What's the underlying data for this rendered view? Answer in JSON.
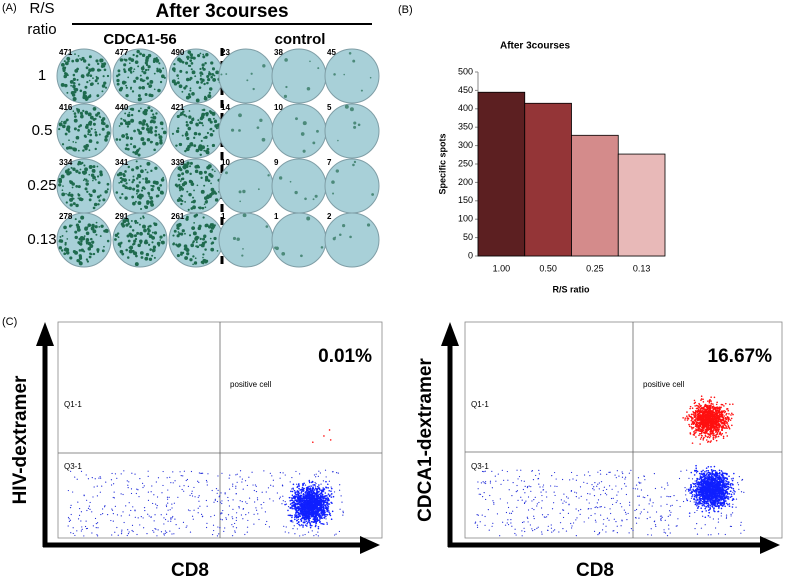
{
  "panel_labels": [
    "(A)",
    "(B)",
    "(C)"
  ],
  "elispot": {
    "title": "After 3courses",
    "row_header": [
      "R/S",
      "ratio"
    ],
    "groups": [
      "CDCA1-56",
      "control"
    ],
    "rows": [
      "1",
      "0.5",
      "0.25",
      "0.13"
    ],
    "counts": [
      [
        471,
        477,
        490,
        23,
        38,
        45
      ],
      [
        416,
        440,
        421,
        14,
        10,
        5
      ],
      [
        334,
        341,
        339,
        10,
        9,
        7
      ],
      [
        278,
        291,
        261,
        1,
        1,
        2
      ]
    ]
  },
  "chart_data": {
    "type": "bar",
    "title": "After 3courses",
    "categories": [
      "1.00",
      "0.50",
      "0.25",
      "0.13"
    ],
    "values": [
      445,
      415,
      328,
      277
    ],
    "colors": [
      "#5c1f21",
      "#943537",
      "#d48b8b",
      "#e8b9b8"
    ],
    "x_label": "R/S ratio",
    "y_label": "Specific spots",
    "ylim": [
      0,
      500
    ],
    "yticks": [
      0,
      50,
      100,
      150,
      200,
      250,
      300,
      350,
      400,
      450,
      500
    ]
  },
  "flow": [
    {
      "y_label": "HIV-dextramer",
      "x_label": "CD8",
      "percent": "0.01%",
      "annotation": "positive cell",
      "gates": [
        "Q1-1",
        "Q3-1"
      ]
    },
    {
      "y_label": "CDCA1-dextramer",
      "x_label": "CD8",
      "percent": "16.67%",
      "annotation": "positive cell",
      "gates": [
        "Q1-1",
        "Q3-1"
      ]
    }
  ]
}
